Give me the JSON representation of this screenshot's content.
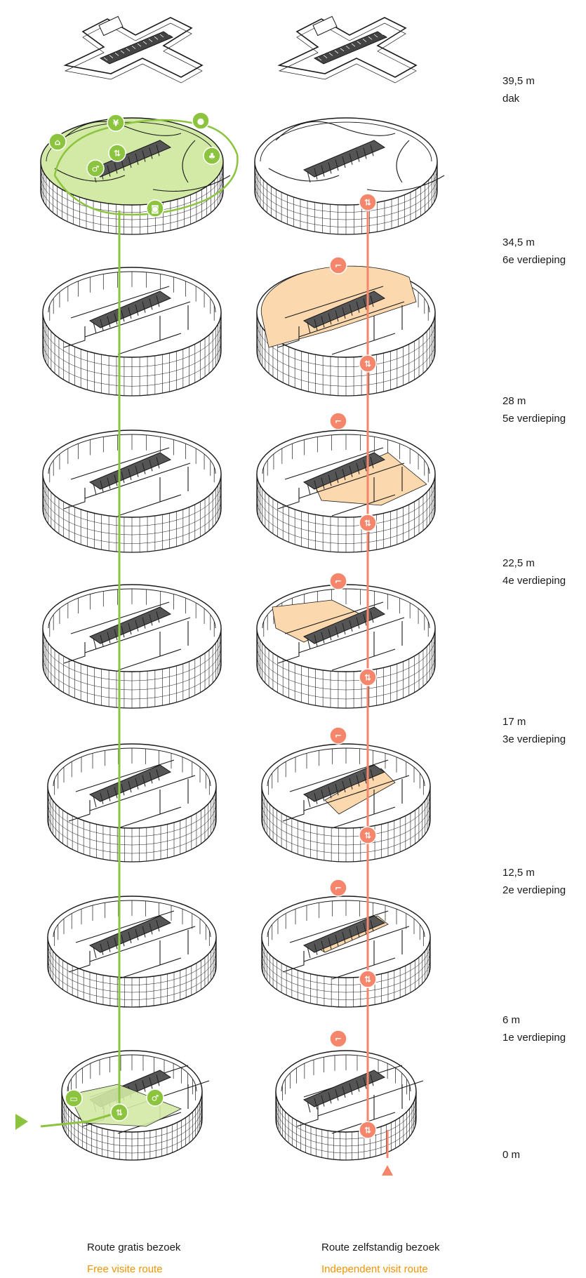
{
  "colors": {
    "free_route": "#8cc43f",
    "free_fill": "#d3e9a6",
    "independent_route": "#f5856b",
    "independent_fill": "#fbd8ad",
    "line": "#1a1a1a",
    "legend_en": "#f29400"
  },
  "levels": [
    {
      "height": "39,5 m",
      "name": "dak"
    },
    {
      "height": "34,5 m",
      "name": "6e verdieping"
    },
    {
      "height": "28 m",
      "name": "5e verdieping"
    },
    {
      "height": "22,5 m",
      "name": "4e verdieping"
    },
    {
      "height": "17 m",
      "name": "3e verdieping"
    },
    {
      "height": "12,5 m",
      "name": "2e verdieping"
    },
    {
      "height": "6 m",
      "name": "1e verdieping"
    },
    {
      "height": "0 m",
      "name": ""
    }
  ],
  "legend": {
    "free": {
      "nl": "Route gratis bezoek",
      "en": "Free visite route"
    },
    "independent": {
      "nl": "Route zelfstandig bezoek",
      "en": "Independent visit route"
    }
  },
  "icons": {
    "free_route": [
      "restaurant-icon",
      "elevator-icon",
      "toilet-icon",
      "location-pin-icon",
      "tree-icon",
      "camera-icon",
      "door-icon",
      "ticket-icon",
      "entrance-arrow-icon"
    ],
    "independent_route": [
      "elevator-icon",
      "stairs-icon",
      "entrance-arrow-icon"
    ]
  }
}
